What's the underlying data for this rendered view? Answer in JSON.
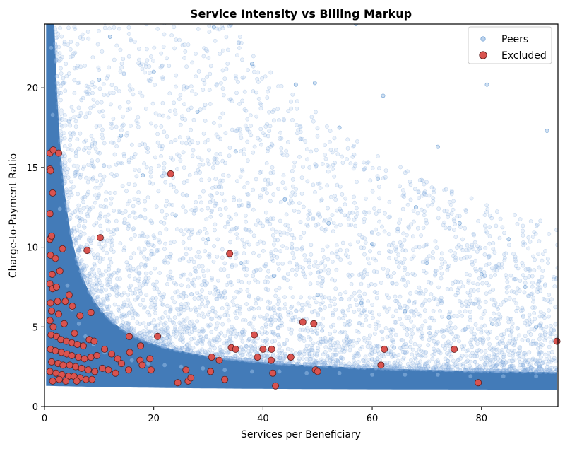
{
  "chart_data": {
    "type": "scatter",
    "title": "Service Intensity vs Billing Markup",
    "xlabel": "Services per Beneficiary",
    "ylabel": "Charge-to-Payment Ratio",
    "xlim": [
      0,
      94
    ],
    "ylim": [
      0,
      24
    ],
    "xticks": [
      0,
      20,
      40,
      60,
      80
    ],
    "yticks": [
      0,
      5,
      10,
      15,
      20
    ],
    "grid": false,
    "legend_position": "top-right",
    "colors": {
      "peers": "#2f6db0",
      "excluded": "#d9534f",
      "excluded_edge": "#5a1d1d"
    },
    "series": [
      {
        "name": "Peers",
        "description_of_density": "dense cloud concentrated near low x and low ratio, scattered sparse points across the range",
        "points": [
          [
            1.2,
            22.5
          ],
          [
            1.5,
            18.3
          ],
          [
            2.1,
            16.0
          ],
          [
            2.8,
            12.4
          ],
          [
            3.5,
            9.8
          ],
          [
            4.2,
            7.6
          ],
          [
            5.0,
            6.1
          ],
          [
            6.3,
            5.2
          ],
          [
            7.5,
            4.4
          ],
          [
            9.0,
            3.9
          ],
          [
            11.0,
            3.4
          ],
          [
            13.5,
            3.1
          ],
          [
            16.0,
            2.9
          ],
          [
            19.0,
            2.7
          ],
          [
            22.0,
            2.6
          ],
          [
            25.0,
            2.5
          ],
          [
            29.0,
            2.4
          ],
          [
            33.0,
            2.3
          ],
          [
            38.0,
            2.2
          ],
          [
            43.0,
            2.2
          ],
          [
            48.0,
            2.1
          ],
          [
            54.0,
            2.1
          ],
          [
            60.0,
            2.0
          ],
          [
            66.0,
            2.0
          ],
          [
            72.0,
            2.0
          ],
          [
            78.0,
            1.9
          ],
          [
            84.0,
            1.9
          ],
          [
            90.0,
            1.9
          ],
          [
            10.0,
            20.5
          ],
          [
            14.0,
            17.0
          ],
          [
            18.0,
            14.5
          ],
          [
            24.0,
            12.0
          ],
          [
            30.0,
            10.5
          ],
          [
            36.0,
            9.0
          ],
          [
            42.0,
            8.2
          ],
          [
            50.0,
            7.0
          ],
          [
            58.0,
            6.5
          ],
          [
            66.0,
            6.0
          ],
          [
            74.0,
            5.6
          ],
          [
            82.0,
            5.2
          ],
          [
            90.0,
            5.0
          ],
          [
            20.0,
            21.0
          ],
          [
            28.0,
            18.5
          ],
          [
            35.0,
            16.0
          ],
          [
            44.0,
            13.0
          ],
          [
            52.0,
            11.5
          ],
          [
            60.0,
            10.2
          ],
          [
            70.0,
            9.0
          ],
          [
            80.0,
            8.3
          ],
          [
            88.0,
            7.5
          ],
          [
            46.0,
            20.2
          ],
          [
            54.0,
            17.5
          ],
          [
            61.0,
            14.3
          ],
          [
            68.0,
            12.5
          ],
          [
            76.0,
            11.5
          ],
          [
            85.0,
            10.5
          ],
          [
            92.0,
            17.3
          ],
          [
            81.0,
            20.2
          ],
          [
            62.0,
            19.5
          ],
          [
            72.0,
            16.3
          ],
          [
            38.0,
            21.5
          ],
          [
            12.0,
            23.2
          ],
          [
            31.0,
            23.8
          ],
          [
            49.5,
            20.3
          ],
          [
            57.0,
            24.0
          ]
        ]
      },
      {
        "name": "Excluded",
        "points": [
          [
            1.0,
            15.9
          ],
          [
            1.6,
            16.1
          ],
          [
            2.6,
            15.9
          ],
          [
            1.0,
            14.9
          ],
          [
            1.1,
            14.8
          ],
          [
            1.5,
            13.4
          ],
          [
            1.0,
            12.1
          ],
          [
            23.1,
            14.6
          ],
          [
            1.0,
            10.5
          ],
          [
            1.3,
            10.7
          ],
          [
            1.1,
            9.5
          ],
          [
            2.0,
            9.3
          ],
          [
            3.3,
            9.9
          ],
          [
            7.8,
            9.8
          ],
          [
            10.2,
            10.6
          ],
          [
            33.9,
            9.6
          ],
          [
            1.4,
            8.3
          ],
          [
            2.8,
            8.5
          ],
          [
            1.0,
            7.7
          ],
          [
            1.5,
            7.4
          ],
          [
            2.2,
            7.5
          ],
          [
            4.5,
            7.0
          ],
          [
            1.1,
            6.5
          ],
          [
            2.4,
            6.6
          ],
          [
            3.8,
            6.6
          ],
          [
            5.1,
            6.3
          ],
          [
            1.3,
            6.0
          ],
          [
            2.6,
            5.8
          ],
          [
            6.5,
            5.7
          ],
          [
            8.5,
            5.9
          ],
          [
            1.0,
            5.4
          ],
          [
            1.6,
            5.0
          ],
          [
            3.6,
            5.2
          ],
          [
            5.5,
            4.6
          ],
          [
            1.2,
            4.5
          ],
          [
            2.2,
            4.4
          ],
          [
            3.0,
            4.2
          ],
          [
            4.0,
            4.1
          ],
          [
            5.0,
            4.0
          ],
          [
            6.0,
            3.9
          ],
          [
            7.1,
            3.8
          ],
          [
            8.2,
            4.2
          ],
          [
            9.1,
            4.1
          ],
          [
            1.1,
            3.6
          ],
          [
            2.0,
            3.5
          ],
          [
            3.1,
            3.4
          ],
          [
            4.1,
            3.3
          ],
          [
            5.0,
            3.2
          ],
          [
            6.2,
            3.1
          ],
          [
            7.3,
            3.0
          ],
          [
            8.5,
            3.1
          ],
          [
            9.6,
            3.2
          ],
          [
            11.0,
            3.6
          ],
          [
            12.3,
            3.3
          ],
          [
            13.4,
            3.0
          ],
          [
            14.1,
            2.7
          ],
          [
            1.3,
            2.8
          ],
          [
            2.5,
            2.7
          ],
          [
            3.4,
            2.6
          ],
          [
            4.6,
            2.6
          ],
          [
            5.7,
            2.5
          ],
          [
            6.8,
            2.4
          ],
          [
            8.0,
            2.3
          ],
          [
            9.2,
            2.2
          ],
          [
            10.6,
            2.4
          ],
          [
            11.7,
            2.3
          ],
          [
            13.0,
            2.1
          ],
          [
            1.0,
            2.2
          ],
          [
            2.1,
            2.1
          ],
          [
            3.2,
            2.0
          ],
          [
            4.4,
            1.9
          ],
          [
            5.4,
            1.9
          ],
          [
            6.5,
            1.8
          ],
          [
            7.6,
            1.7
          ],
          [
            8.7,
            1.7
          ],
          [
            1.5,
            1.6
          ],
          [
            2.7,
            1.7
          ],
          [
            3.9,
            1.6
          ],
          [
            5.9,
            1.6
          ],
          [
            15.5,
            4.4
          ],
          [
            17.6,
            3.8
          ],
          [
            20.7,
            4.4
          ],
          [
            15.6,
            3.4
          ],
          [
            17.5,
            2.9
          ],
          [
            19.3,
            3.0
          ],
          [
            15.4,
            2.3
          ],
          [
            17.9,
            2.6
          ],
          [
            19.5,
            2.3
          ],
          [
            24.4,
            1.5
          ],
          [
            25.9,
            2.3
          ],
          [
            26.3,
            1.6
          ],
          [
            26.8,
            1.8
          ],
          [
            30.4,
            2.2
          ],
          [
            30.6,
            3.1
          ],
          [
            32.0,
            2.9
          ],
          [
            33.0,
            1.7
          ],
          [
            34.2,
            3.7
          ],
          [
            35.0,
            3.6
          ],
          [
            38.4,
            4.5
          ],
          [
            39.0,
            3.1
          ],
          [
            40.0,
            3.6
          ],
          [
            41.6,
            3.6
          ],
          [
            41.5,
            2.9
          ],
          [
            41.8,
            2.1
          ],
          [
            42.3,
            1.3
          ],
          [
            45.1,
            3.1
          ],
          [
            47.3,
            5.3
          ],
          [
            49.3,
            5.2
          ],
          [
            49.6,
            2.3
          ],
          [
            50.0,
            2.2
          ],
          [
            61.6,
            2.6
          ],
          [
            62.2,
            3.6
          ],
          [
            75.0,
            3.6
          ],
          [
            79.4,
            1.5
          ],
          [
            93.8,
            4.1
          ]
        ]
      }
    ]
  }
}
